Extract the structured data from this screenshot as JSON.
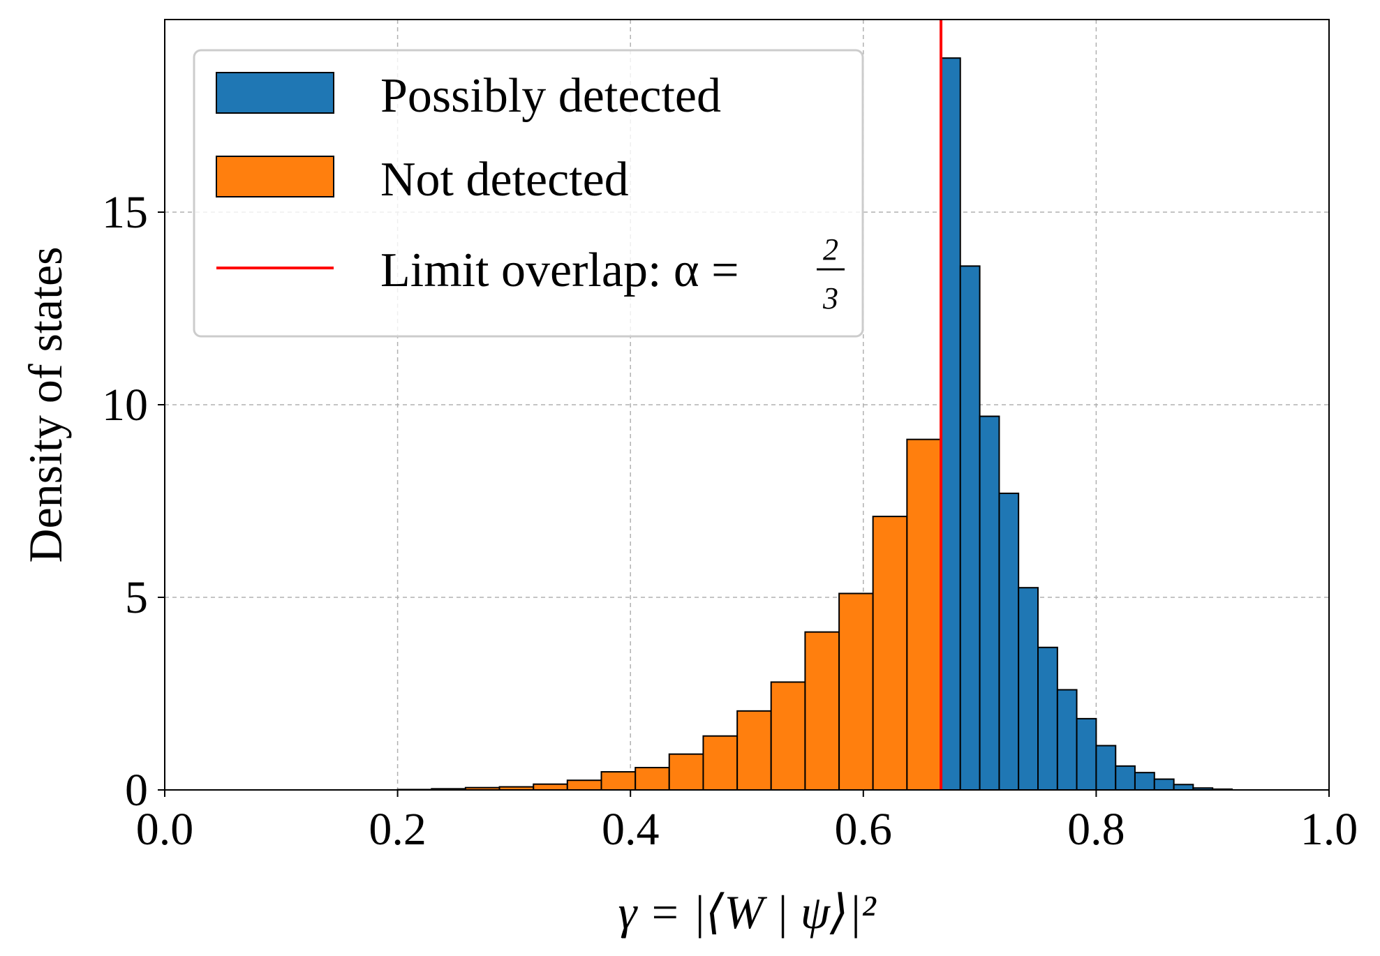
{
  "chart_data": {
    "type": "bar",
    "title": "",
    "xlabel": "γ = |⟨W | ψ⟩|²",
    "ylabel": "Density of states",
    "xlim": [
      0.0,
      1.0
    ],
    "ylim": [
      0,
      20
    ],
    "xticks": [
      0.0,
      0.2,
      0.4,
      0.6,
      0.8,
      1.0
    ],
    "xtick_labels": [
      "0.0",
      "0.2",
      "0.4",
      "0.6",
      "0.8",
      "1.0"
    ],
    "yticks": [
      0,
      5,
      10,
      15
    ],
    "ytick_labels": [
      "0",
      "5",
      "10",
      "15"
    ],
    "grid": true,
    "legend_position": "top-left",
    "threshold": {
      "name": "Limit overlap",
      "value": 0.6667,
      "label_prefix": "Limit overlap: α =",
      "fraction_numerator": "2",
      "fraction_denominator": "3",
      "color": "#ff0000"
    },
    "series": [
      {
        "name": "Not detected",
        "label": "Not detected",
        "color": "#ff7f0e",
        "bins": [
          {
            "x0": 0.2,
            "x1": 0.2292,
            "value": 0.01
          },
          {
            "x0": 0.2292,
            "x1": 0.2583,
            "value": 0.03
          },
          {
            "x0": 0.2583,
            "x1": 0.2875,
            "value": 0.06
          },
          {
            "x0": 0.2875,
            "x1": 0.3167,
            "value": 0.08
          },
          {
            "x0": 0.3167,
            "x1": 0.3458,
            "value": 0.15
          },
          {
            "x0": 0.3458,
            "x1": 0.375,
            "value": 0.25
          },
          {
            "x0": 0.375,
            "x1": 0.4042,
            "value": 0.47
          },
          {
            "x0": 0.4042,
            "x1": 0.4333,
            "value": 0.58
          },
          {
            "x0": 0.4333,
            "x1": 0.4625,
            "value": 0.93
          },
          {
            "x0": 0.4625,
            "x1": 0.4917,
            "value": 1.4
          },
          {
            "x0": 0.4917,
            "x1": 0.5208,
            "value": 2.05
          },
          {
            "x0": 0.5208,
            "x1": 0.55,
            "value": 2.8
          },
          {
            "x0": 0.55,
            "x1": 0.5792,
            "value": 4.1
          },
          {
            "x0": 0.5792,
            "x1": 0.6083,
            "value": 5.1
          },
          {
            "x0": 0.6083,
            "x1": 0.6375,
            "value": 7.1
          },
          {
            "x0": 0.6375,
            "x1": 0.6667,
            "value": 9.1
          }
        ]
      },
      {
        "name": "Possibly detected",
        "label": "Possibly detected",
        "color": "#1f77b4",
        "bins": [
          {
            "x0": 0.6667,
            "x1": 0.6833,
            "value": 19.0
          },
          {
            "x0": 0.6833,
            "x1": 0.7,
            "value": 13.6
          },
          {
            "x0": 0.7,
            "x1": 0.7167,
            "value": 9.7
          },
          {
            "x0": 0.7167,
            "x1": 0.7333,
            "value": 7.7
          },
          {
            "x0": 0.7333,
            "x1": 0.75,
            "value": 5.25
          },
          {
            "x0": 0.75,
            "x1": 0.7667,
            "value": 3.7
          },
          {
            "x0": 0.7667,
            "x1": 0.7833,
            "value": 2.6
          },
          {
            "x0": 0.7833,
            "x1": 0.8,
            "value": 1.85
          },
          {
            "x0": 0.8,
            "x1": 0.8167,
            "value": 1.15
          },
          {
            "x0": 0.8167,
            "x1": 0.8333,
            "value": 0.62
          },
          {
            "x0": 0.8333,
            "x1": 0.85,
            "value": 0.45
          },
          {
            "x0": 0.85,
            "x1": 0.8667,
            "value": 0.28
          },
          {
            "x0": 0.8667,
            "x1": 0.8833,
            "value": 0.14
          },
          {
            "x0": 0.8833,
            "x1": 0.9,
            "value": 0.05
          },
          {
            "x0": 0.9,
            "x1": 0.9167,
            "value": 0.02
          }
        ]
      }
    ]
  }
}
